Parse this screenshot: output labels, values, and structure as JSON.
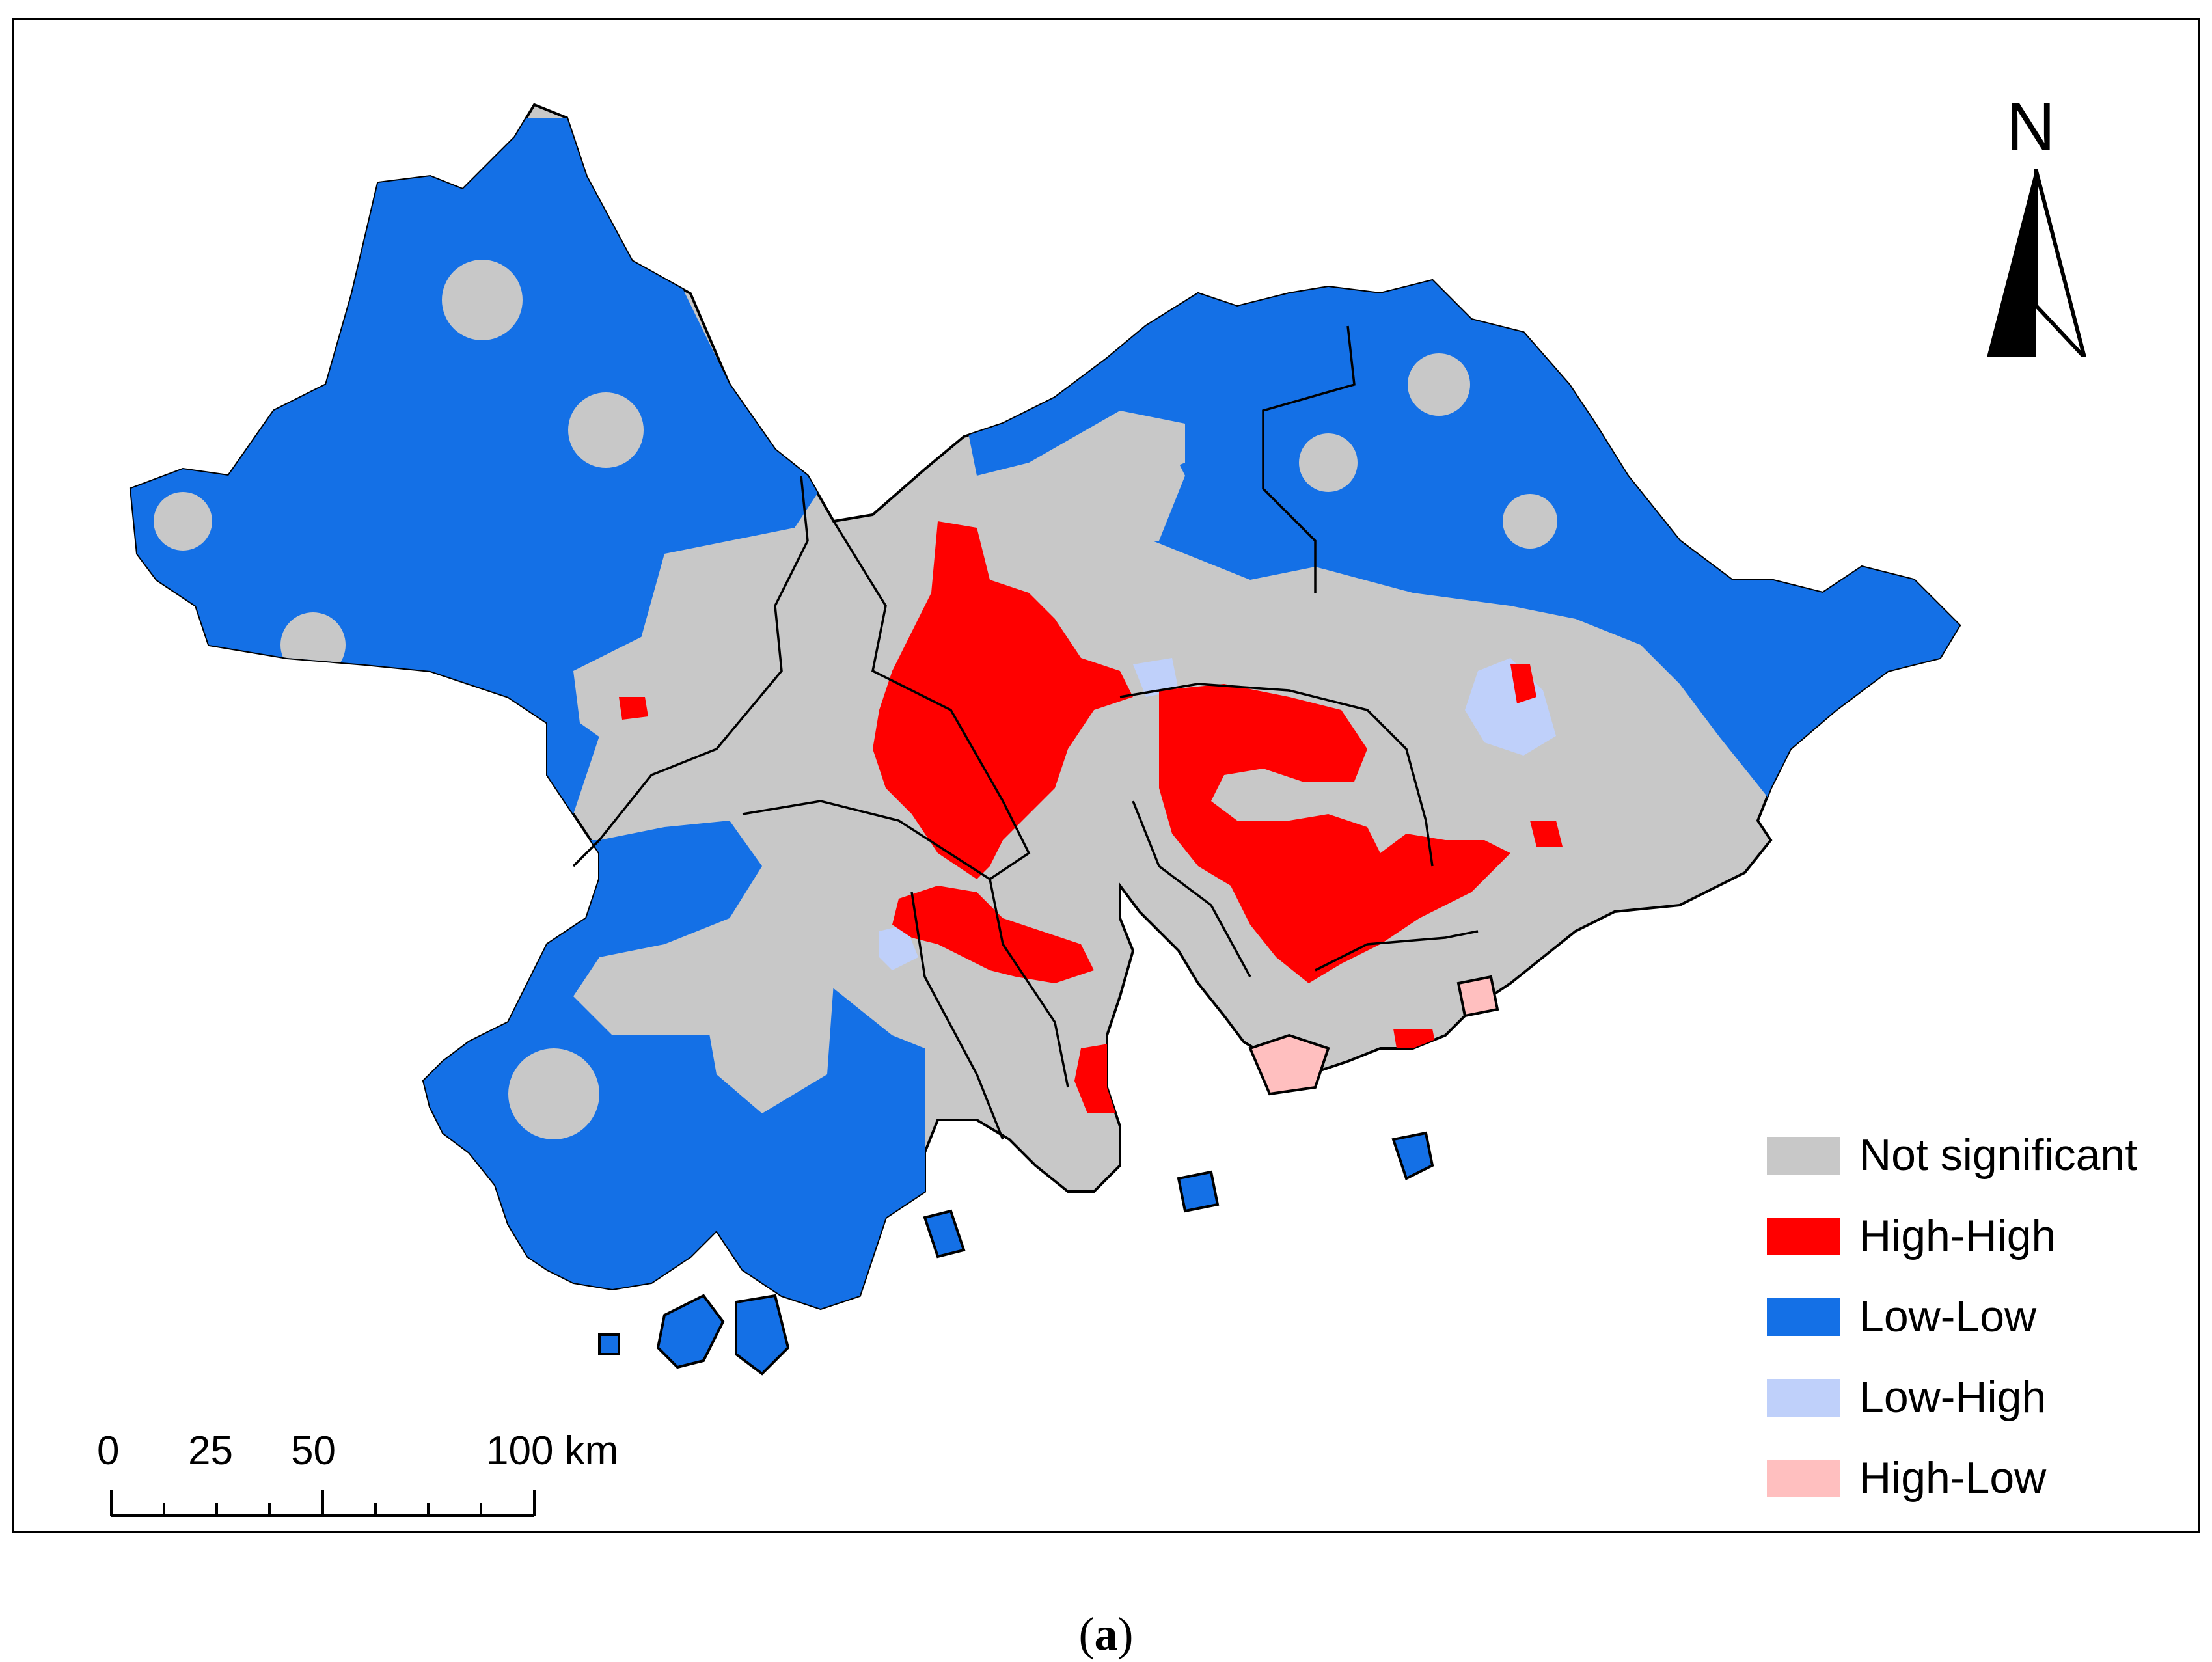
{
  "figure": {
    "caption_letter": "a",
    "caption_open": "(",
    "caption_close": ")"
  },
  "north_arrow": {
    "label": "N",
    "icon": "north-arrow-icon"
  },
  "scale_bar": {
    "ticks": [
      "0",
      "25",
      "50",
      "100 km"
    ]
  },
  "legend": {
    "items": [
      {
        "label": "Not significant",
        "color": "#c8c8c8"
      },
      {
        "label": "High-High",
        "color": "#ff0000"
      },
      {
        "label": "Low-Low",
        "color": "#1470e6"
      },
      {
        "label": "Low-High",
        "color": "#bfd0fa"
      },
      {
        "label": "High-Low",
        "color": "#ffbfbf"
      }
    ]
  },
  "colors": {
    "not_significant": "#c8c8c8",
    "high_high": "#ff0000",
    "low_low": "#1470e6",
    "low_high": "#bfd0fa",
    "high_low": "#ffbfbf",
    "boundary": "#000000"
  }
}
